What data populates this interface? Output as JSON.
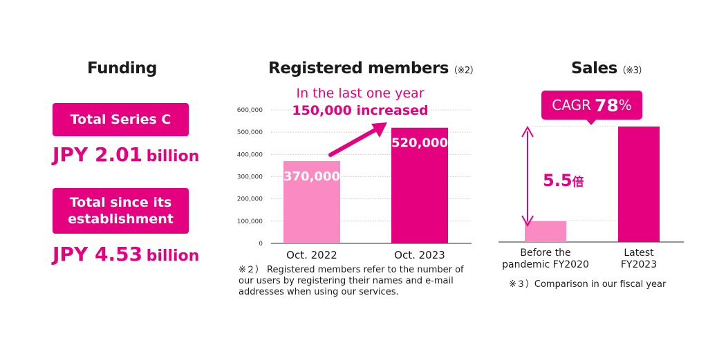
{
  "funding": {
    "title": "Funding",
    "series_c_label": "Total Series C",
    "series_c_currency": "JPY 2.01",
    "series_c_unit": "billion",
    "total_label_line1": "Total since its",
    "total_label_line2": "establishment",
    "total_currency": "JPY 4.53",
    "total_unit": "billion"
  },
  "members": {
    "title": "Registered members",
    "note_mark": "（※2）",
    "annotation_line1": "In the last one year",
    "annotation_line2": "150,000 increased",
    "footnote": "※２） Registered members refer to the number of our users by registering their names and e-mail addresses when using our services."
  },
  "sales": {
    "title": "Sales",
    "note_mark": "（※3）",
    "cagr_label": "CAGR",
    "cagr_value": "78",
    "cagr_pct": "%",
    "multiplier_value": "5.5",
    "multiplier_unit": "倍",
    "footnote": "※３）Comparison in our fiscal year"
  },
  "colors": {
    "accent": "#e4007f",
    "light": "#f98bc2"
  },
  "chart_data": [
    {
      "type": "bar",
      "title": "Registered members",
      "categories": [
        "Oct. 2022",
        "Oct. 2023"
      ],
      "values": [
        370000,
        520000
      ],
      "value_labels": [
        "370,000",
        "520,000"
      ],
      "ylim": [
        0,
        600000
      ],
      "yticks": [
        0,
        100000,
        200000,
        300000,
        400000,
        500000,
        600000
      ],
      "ytick_labels": [
        "0",
        "100,000",
        "200,000",
        "300,000",
        "400,000",
        "500,000",
        "600,000"
      ],
      "grid": true
    },
    {
      "type": "bar",
      "title": "Sales",
      "categories": [
        "Before the|pandemic FY2020",
        "Latest|FY2023"
      ],
      "values": [
        1,
        5.5
      ],
      "grid": false
    }
  ]
}
